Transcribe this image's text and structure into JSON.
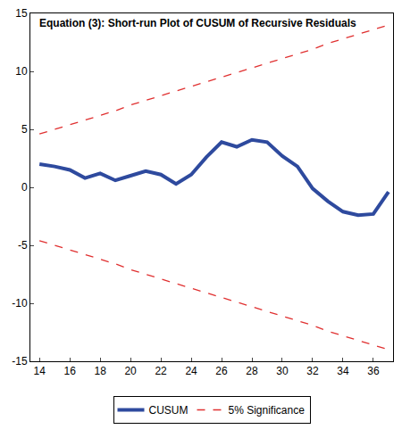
{
  "chart_data": {
    "type": "line",
    "title": "Equation (3): Short-run Plot of CUSUM of Recursive Residuals",
    "x": [
      14,
      15,
      16,
      17,
      18,
      19,
      20,
      21,
      22,
      23,
      24,
      25,
      26,
      27,
      28,
      29,
      30,
      31,
      32,
      33,
      34,
      35,
      36,
      37
    ],
    "series": [
      {
        "name": "CUSUM",
        "color": "#2e4a9e",
        "line_style": "solid",
        "values": [
          2.0,
          1.8,
          1.5,
          0.8,
          1.2,
          0.6,
          1.0,
          1.4,
          1.1,
          0.3,
          1.1,
          2.6,
          3.9,
          3.5,
          4.1,
          3.9,
          2.7,
          1.8,
          -0.1,
          -1.2,
          -2.1,
          -2.4,
          -2.3,
          -0.4
        ]
      },
      {
        "name": "5% Significance",
        "color": "#e03030",
        "line_style": "dash",
        "values": [
          4.6,
          5.0,
          5.4,
          5.8,
          6.2,
          6.6,
          7.1,
          7.5,
          7.9,
          8.3,
          8.7,
          9.1,
          9.5,
          9.9,
          10.3,
          10.7,
          11.1,
          11.5,
          11.9,
          12.4,
          12.8,
          13.2,
          13.6,
          14.0
        ]
      },
      {
        "name": "5% Significance",
        "color": "#e03030",
        "line_style": "dash",
        "values": [
          -4.6,
          -5.0,
          -5.4,
          -5.8,
          -6.2,
          -6.6,
          -7.1,
          -7.5,
          -7.9,
          -8.3,
          -8.7,
          -9.1,
          -9.5,
          -9.9,
          -10.3,
          -10.7,
          -11.1,
          -11.5,
          -11.9,
          -12.4,
          -12.8,
          -13.2,
          -13.6,
          -14.0
        ]
      }
    ],
    "xlim": [
      13.4,
      37.3
    ],
    "xticks": [
      14,
      16,
      18,
      20,
      22,
      24,
      26,
      28,
      30,
      32,
      34,
      36
    ],
    "ylim": [
      -15,
      15
    ],
    "yticks": [
      -15,
      -10,
      -5,
      0,
      5,
      10,
      15
    ],
    "grid": false,
    "legend": "bottom"
  }
}
